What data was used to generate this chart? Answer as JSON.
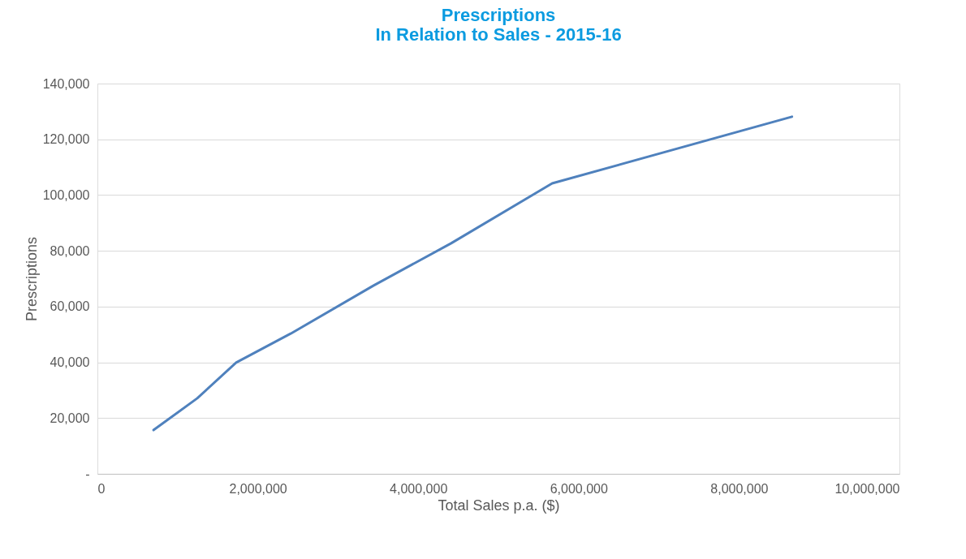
{
  "chart_data": {
    "type": "line",
    "title": "Prescriptions",
    "subtitle": "In Relation to Sales - 2015-16",
    "xlabel": "Total Sales p.a. ($)",
    "ylabel": "Prescriptions",
    "x": [
      700000,
      1245000,
      1730000,
      2410000,
      3440000,
      4410000,
      5670000,
      8660000
    ],
    "series": [
      {
        "color": "#4f81bd",
        "values": [
          15700,
          27100,
          39900,
          50300,
          67500,
          82700,
          104200,
          128100
        ]
      }
    ],
    "xlim": [
      0,
      10000000
    ],
    "xticks": [
      0,
      {
        "value": 2000000,
        "label": "2,000,000"
      },
      {
        "value": 4000000,
        "label": "4,000,000"
      },
      {
        "value": 6000000,
        "label": "6,000,000"
      },
      {
        "value": 8000000,
        "label": "8,000,000"
      },
      {
        "value": 10000000,
        "label": "10,000,000"
      }
    ],
    "ylim": [
      0,
      140000
    ],
    "yticks": [
      {
        "value": 0,
        "label": "-"
      },
      {
        "value": 20000,
        "label": "20,000"
      },
      {
        "value": 40000,
        "label": "40,000"
      },
      {
        "value": 60000,
        "label": "60,000"
      },
      {
        "value": 80000,
        "label": "80,000"
      },
      {
        "value": 100000,
        "label": "100,000"
      },
      {
        "value": 120000,
        "label": "120,000"
      },
      {
        "value": 140000,
        "label": "140,000"
      }
    ],
    "grid": "y",
    "marker": "none",
    "line_style": "solid"
  }
}
